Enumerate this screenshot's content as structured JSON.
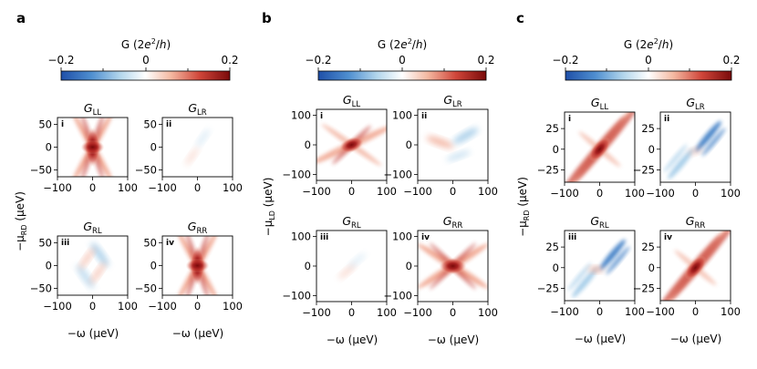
{
  "figure": {
    "colorbar": {
      "label": "G (2e²/h)",
      "ticks": [
        "−0.2",
        "0",
        "0.2"
      ],
      "range": [
        -0.2,
        0.2
      ],
      "colors": {
        "negative": "#1f4fa8",
        "zero": "#ffffff",
        "positive": "#7a0a0a"
      }
    },
    "xlabel": "−ω (μeV)",
    "subpanel_titles": [
      {
        "id": "LL",
        "base": "G",
        "sub": "LL",
        "roman": "i"
      },
      {
        "id": "LR",
        "base": "G",
        "sub": "LR",
        "roman": "ii"
      },
      {
        "id": "RL",
        "base": "G",
        "sub": "RL",
        "roman": "iii"
      },
      {
        "id": "RR",
        "base": "G",
        "sub": "RR",
        "roman": "iv"
      }
    ]
  },
  "chart_data": [
    {
      "type": "heatmap",
      "panel": "a",
      "ylabel": {
        "prefix": "−μ",
        "sub": "RD",
        "suffix": " (μeV)"
      },
      "x_ticks": [
        -100,
        0,
        100
      ],
      "y_ticks": [
        50,
        0,
        -50
      ],
      "xlim": [
        -100,
        100
      ],
      "ylim": [
        -65,
        65
      ],
      "subplots": [
        {
          "id": "LL",
          "max_G": 0.2,
          "pattern": "symmetric X-shaped crossing, strong positive peak at center"
        },
        {
          "id": "LR",
          "max_G": 0.02,
          "pattern": "nearly zero, faint features"
        },
        {
          "id": "RL",
          "max_G": 0.05,
          "pattern": "weak negative upper-right, weak positive lower-left"
        },
        {
          "id": "RR",
          "max_G": 0.2,
          "pattern": "symmetric X-shaped crossing, strong positive peak at center"
        }
      ]
    },
    {
      "type": "heatmap",
      "panel": "b",
      "ylabel": {
        "prefix": "−μ",
        "sub": "LD",
        "suffix": " (μeV)"
      },
      "x_ticks": [
        -100,
        0,
        100
      ],
      "y_ticks": [
        100,
        0,
        -100
      ],
      "xlim": [
        -100,
        100
      ],
      "ylim": [
        -120,
        120
      ],
      "subplots": [
        {
          "id": "LL",
          "max_G": 0.2,
          "pattern": "diagonal streaks, positive peak near center"
        },
        {
          "id": "LR",
          "max_G": 0.06,
          "pattern": "weak positive left streak, weak negative right streak"
        },
        {
          "id": "RL",
          "max_G": 0.02,
          "pattern": "very faint"
        },
        {
          "id": "RR",
          "max_G": 0.2,
          "pattern": "X-shaped crossing, strong positive center"
        }
      ]
    },
    {
      "type": "heatmap",
      "panel": "c",
      "ylabel": {
        "prefix": "−μ",
        "sub": "RD",
        "suffix": " (μeV)"
      },
      "x_ticks": [
        -100,
        0,
        100
      ],
      "y_ticks": [
        25,
        0,
        -25
      ],
      "xlim": [
        -100,
        100
      ],
      "ylim": [
        -40,
        45
      ],
      "subplots": [
        {
          "id": "LL",
          "max_G": 0.2,
          "pattern": "diagonal stripes, strong positive center"
        },
        {
          "id": "LR",
          "max_G": -0.15,
          "pattern": "negative diagonal stripes upper-right and lower-left"
        },
        {
          "id": "RL",
          "max_G": -0.15,
          "pattern": "negative diagonal stripes, weak positive center"
        },
        {
          "id": "RR",
          "max_G": 0.2,
          "pattern": "diagonal stripes, strong positive center"
        }
      ]
    }
  ]
}
